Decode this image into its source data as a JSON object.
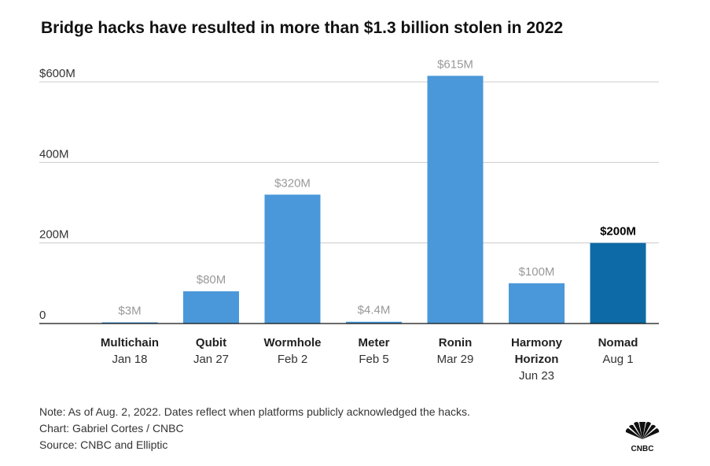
{
  "title": "Bridge hacks have resulted in more than $1.3 billion stolen in 2022",
  "notes": {
    "note": "Note: As of Aug. 2, 2022. Dates reflect when platforms publicly acknowledged the hacks.",
    "credit": "Chart: Gabriel Cortes / CNBC",
    "source": "Source: CNBC and Elliptic"
  },
  "logo_text": "CNBC",
  "colors": {
    "bar": "#4a98d9",
    "highlight": "#0e6aa6",
    "grid": "#cccccc",
    "label": "#999999"
  },
  "chart_data": {
    "type": "bar",
    "title": "Bridge hacks have resulted in more than $1.3 billion stolen in 2022",
    "categories": [
      "Multichain",
      "Qubit",
      "Wormhole",
      "Meter",
      "Ronin",
      "Harmony Horizon",
      "Nomad"
    ],
    "category_lines": [
      [
        "Multichain"
      ],
      [
        "Qubit"
      ],
      [
        "Wormhole"
      ],
      [
        "Meter"
      ],
      [
        "Ronin"
      ],
      [
        "Harmony",
        "Horizon"
      ],
      [
        "Nomad"
      ]
    ],
    "dates": [
      "Jan 18",
      "Jan 27",
      "Feb 2",
      "Feb 5",
      "Mar 29",
      "Jun 23",
      "Aug 1"
    ],
    "values": [
      3,
      80,
      320,
      4.4,
      615,
      100,
      200
    ],
    "value_labels": [
      "$3M",
      "$80M",
      "$320M",
      "$4.4M",
      "$615M",
      "$100M",
      "$200M"
    ],
    "highlight_index": 6,
    "yticks": [
      0,
      200,
      400,
      600
    ],
    "ytick_labels": [
      "0",
      "200M",
      "400M",
      "$600M"
    ],
    "ylim": [
      0,
      600
    ],
    "grid": true,
    "xlabel": "",
    "ylabel": ""
  }
}
